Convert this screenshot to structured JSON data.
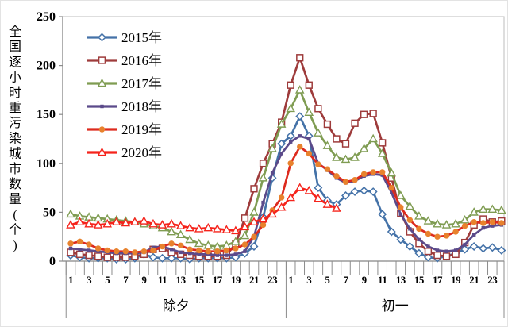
{
  "chart_data": {
    "type": "line",
    "title": "",
    "ylabel": "全国逐小时重污染城市数量(个)",
    "ylim": [
      0,
      250
    ],
    "yticks": [
      0,
      50,
      100,
      150,
      200,
      250
    ],
    "grid": false,
    "legend_position": "upper-left-inside",
    "x_mode": "two-day hourly axis, 24 hours per day, odd hours labeled",
    "day_groups": [
      {
        "label": "除夕",
        "hours": 24
      },
      {
        "label": "初一",
        "hours": 24
      }
    ],
    "hour_tick_labels": [
      1,
      3,
      5,
      7,
      9,
      11,
      13,
      15,
      17,
      19,
      21,
      23
    ],
    "series": [
      {
        "name": "2015年",
        "color": "#4472A8",
        "marker": "diamond-open",
        "values": [
          6,
          4,
          3,
          3,
          3,
          2,
          2,
          3,
          7,
          4,
          3,
          3,
          3,
          2,
          3,
          3,
          3,
          3,
          4,
          8,
          15,
          45,
          85,
          120,
          128,
          148,
          128,
          75,
          62,
          58,
          67,
          71,
          72,
          71,
          48,
          30,
          22,
          15,
          8,
          4,
          3,
          5,
          8,
          12,
          15,
          13,
          14,
          11
        ]
      },
      {
        "name": "2016年",
        "color": "#9E3B3B",
        "marker": "square-open",
        "values": [
          9,
          7,
          6,
          5,
          4,
          4,
          4,
          5,
          7,
          12,
          13,
          9,
          7,
          6,
          5,
          5,
          5,
          6,
          18,
          44,
          74,
          100,
          120,
          142,
          180,
          208,
          180,
          156,
          140,
          125,
          120,
          141,
          150,
          151,
          121,
          85,
          49,
          30,
          18,
          10,
          6,
          5,
          7,
          19,
          37,
          43,
          40,
          41
        ]
      },
      {
        "name": "2017年",
        "color": "#7F9C52",
        "marker": "triangle-open",
        "values": [
          48,
          46,
          45,
          44,
          43,
          42,
          41,
          40,
          38,
          36,
          34,
          30,
          27,
          22,
          18,
          16,
          15,
          16,
          20,
          26,
          50,
          85,
          115,
          140,
          156,
          175,
          152,
          131,
          118,
          106,
          104,
          106,
          115,
          125,
          110,
          90,
          67,
          56,
          46,
          41,
          38,
          37,
          38,
          42,
          50,
          53,
          53,
          52
        ]
      },
      {
        "name": "2018年",
        "color": "#5B4A8A",
        "marker": "small-square-filled",
        "values": [
          13,
          12,
          11,
          10,
          9,
          8,
          8,
          8,
          9,
          14,
          15,
          12,
          9,
          8,
          7,
          7,
          6,
          6,
          7,
          10,
          25,
          60,
          90,
          110,
          122,
          128,
          125,
          100,
          93,
          85,
          80,
          82,
          87,
          89,
          88,
          70,
          48,
          33,
          22,
          15,
          11,
          10,
          11,
          17,
          27,
          34,
          36,
          37
        ]
      },
      {
        "name": "2019年",
        "color": "#DD2A1E",
        "marker": "circle-filled",
        "marker_color": "#E8822D",
        "values": [
          18,
          20,
          17,
          13,
          11,
          10,
          10,
          9,
          10,
          11,
          15,
          18,
          16,
          12,
          11,
          10,
          10,
          11,
          13,
          17,
          25,
          37,
          52,
          65,
          100,
          117,
          110,
          99,
          94,
          87,
          81,
          83,
          89,
          91,
          91,
          75,
          55,
          42,
          33,
          28,
          25,
          26,
          30,
          36,
          40,
          39,
          40,
          39
        ]
      },
      {
        "name": "2020年",
        "color": "#F5231B",
        "marker": "triangle-open",
        "values": [
          37,
          40,
          38,
          37,
          38,
          40,
          39,
          40,
          41,
          38,
          37,
          38,
          36,
          34,
          33,
          34,
          33,
          32,
          31,
          35,
          40,
          43,
          48,
          55,
          65,
          75,
          72,
          64,
          58,
          54,
          null,
          null,
          null,
          null,
          null,
          null,
          null,
          null,
          null,
          null,
          null,
          null,
          null,
          null,
          null,
          null,
          null,
          null
        ]
      }
    ]
  },
  "style_colors": {
    "axis": "#8C8C8C",
    "plot_border": "#C9C9C9",
    "background": "#FFFFFF",
    "text": "#000000"
  }
}
